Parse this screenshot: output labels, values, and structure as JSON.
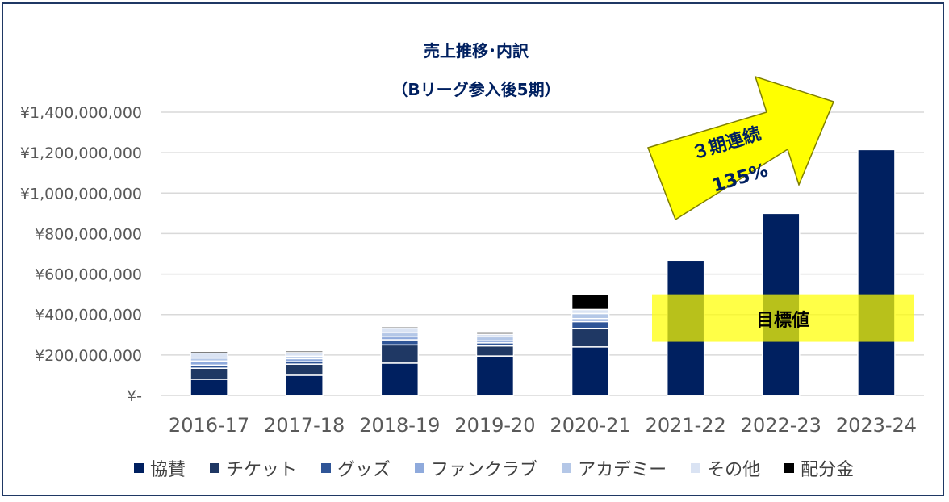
{
  "chart_data": {
    "type": "bar",
    "stacked": true,
    "title": "売上推移･内訳",
    "subtitle": "（Bリーグ参入後5期）",
    "categories": [
      "2016-17",
      "2017-18",
      "2018-19",
      "2019-20",
      "2020-21",
      "2021-22",
      "2022-23",
      "2023-24"
    ],
    "y_ticks": [
      "¥-",
      "¥200,000,000",
      "¥400,000,000",
      "¥600,000,000",
      "¥800,000,000",
      "¥1,000,000,000",
      "¥1,200,000,000",
      "¥1,400,000,000"
    ],
    "ylim": [
      0,
      1400000000
    ],
    "grid": true,
    "legend_position": "bottom",
    "series": [
      {
        "name": "協賛",
        "color": "#002060",
        "values": [
          80000000,
          100000000,
          160000000,
          195000000,
          240000000,
          665000000,
          900000000,
          1215000000
        ]
      },
      {
        "name": "チケット",
        "color": "#1f3864",
        "values": [
          55000000,
          55000000,
          90000000,
          50000000,
          90000000,
          0,
          0,
          0
        ]
      },
      {
        "name": "グッズ",
        "color": "#2f5597",
        "values": [
          15000000,
          12000000,
          25000000,
          15000000,
          35000000,
          0,
          0,
          0
        ]
      },
      {
        "name": "ファンクラブ",
        "color": "#8faadc",
        "values": [
          20000000,
          15000000,
          15000000,
          10000000,
          15000000,
          0,
          0,
          0
        ]
      },
      {
        "name": "アカデミー",
        "color": "#b4c7e7",
        "values": [
          15000000,
          12000000,
          20000000,
          20000000,
          25000000,
          0,
          0,
          0
        ]
      },
      {
        "name": "その他",
        "color": "#dae3f3",
        "values": [
          25000000,
          18000000,
          23000000,
          13000000,
          20000000,
          0,
          0,
          0
        ]
      },
      {
        "name": "配分金",
        "color": "#000000",
        "values": [
          8000000,
          8000000,
          7000000,
          12000000,
          75000000,
          0,
          0,
          0
        ]
      }
    ],
    "annotations": {
      "arrow_text_line1": "３期連続",
      "arrow_text_line2": "135%",
      "target_label": "目標値",
      "target_range": [
        265000000,
        500000000
      ],
      "arrow_color": "#ffff00",
      "target_color": "#ffff00"
    }
  }
}
